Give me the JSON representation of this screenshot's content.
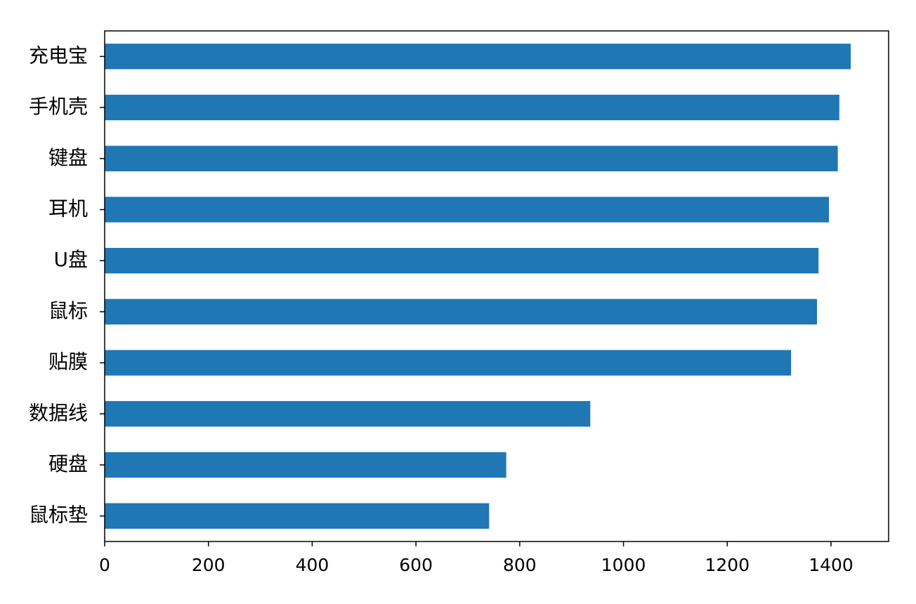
{
  "chart_data": {
    "type": "barh",
    "categories": [
      "充电宝",
      "手机壳",
      "键盘",
      "耳机",
      "U盘",
      "鼠标",
      "贴膜",
      "数据线",
      "硬盘",
      "鼠标垫"
    ],
    "values": [
      1438,
      1416,
      1413,
      1396,
      1376,
      1373,
      1323,
      936,
      774,
      741
    ],
    "color": "#1f77b4",
    "xlim": [
      0,
      1511
    ],
    "xticks": [
      0,
      200,
      400,
      600,
      800,
      1000,
      1200,
      1400
    ],
    "grid": false
  }
}
